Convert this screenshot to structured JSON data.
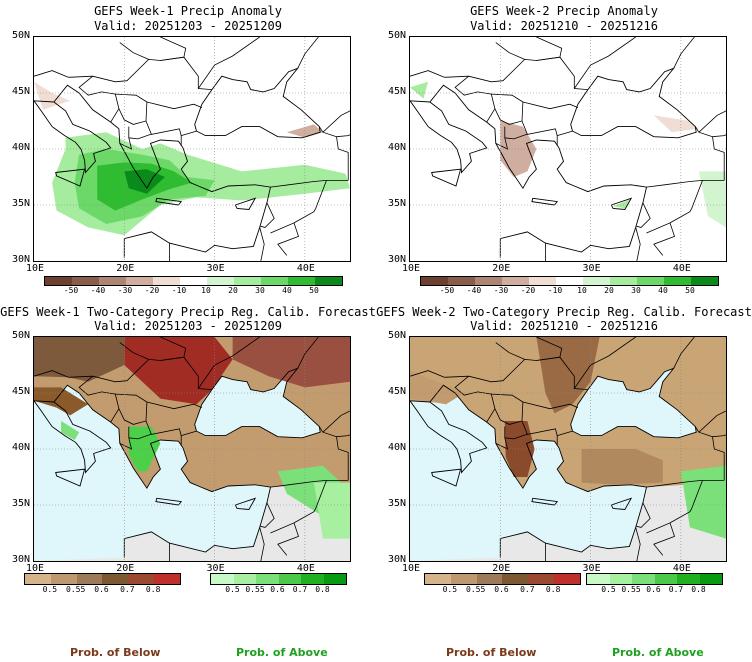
{
  "panels": [
    {
      "title": "GEFS Week-1 Precip Anomaly",
      "valid": "Valid: 20251203 - 20251209"
    },
    {
      "title": "GEFS Week-2 Precip Anomaly",
      "valid": "Valid: 20251210 - 20251216"
    },
    {
      "title": "GEFS Week-1 Two-Category Precip Reg. Calib. Forecast",
      "valid": "Valid: 20251203 - 20251209"
    },
    {
      "title": "GEFS Week-2 Two-Category Precip Reg. Calib. Forecast",
      "valid": "Valid: 20251210 - 20251216"
    }
  ],
  "lat_labels": [
    "50N",
    "45N",
    "40N",
    "35N",
    "30N"
  ],
  "lon_labels": [
    "10E",
    "20E",
    "30E",
    "40E"
  ],
  "anomaly_colorbar": {
    "ticks": [
      "-50",
      "-40",
      "-30",
      "-20",
      "-10",
      "10",
      "20",
      "30",
      "40",
      "50"
    ],
    "colors": [
      "#6e4032",
      "#8a5c4a",
      "#ac8574",
      "#cfaea0",
      "#f0ded4",
      "#ffffff",
      "#d2f5d0",
      "#a6ec9e",
      "#6cd868",
      "#30bc30",
      "#0a8a1a"
    ]
  },
  "below_colorbar": {
    "ticks": [
      "0.5",
      "0.55",
      "0.6",
      "0.7",
      "0.8"
    ],
    "colors": [
      "#d6b48a",
      "#c09870",
      "#9e7a58",
      "#7d5830",
      "#9a4a30",
      "#c0302a"
    ]
  },
  "above_colorbar": {
    "ticks": [
      "0.5",
      "0.55",
      "0.6",
      "0.7",
      "0.8"
    ],
    "colors": [
      "#c8fac8",
      "#a6f0a0",
      "#7ce07a",
      "#4cc84a",
      "#20b020",
      "#089a10"
    ]
  },
  "footer": {
    "below": "Prob. of Below",
    "above": "Prob. of Above"
  },
  "colors": {
    "sea": "#dff6fa",
    "brown": "#c29c6e",
    "dark_brown": "#8a5a2a",
    "red_brown": "#a02c24",
    "green": "#4cd04a",
    "gray": "#e6e6e6"
  }
}
